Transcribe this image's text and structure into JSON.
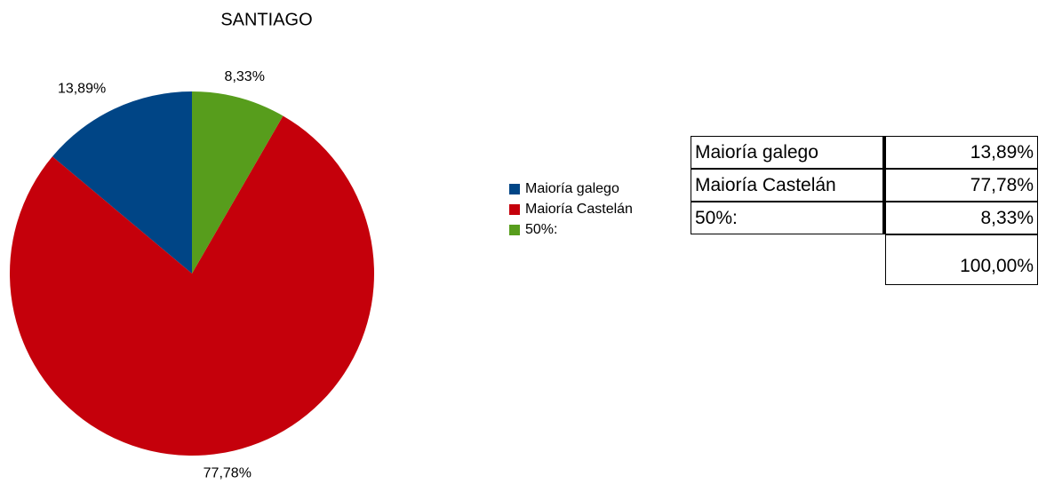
{
  "chart_data": {
    "type": "pie",
    "title": "SANTIAGO",
    "categories": [
      "Maioría galego",
      "Maioría Castelán",
      "50%:"
    ],
    "values": [
      13.89,
      77.78,
      8.33
    ],
    "value_labels": [
      "13,89%",
      "77,78%",
      "8,33%"
    ],
    "colors": [
      "#004586",
      "#c5000b",
      "#579d1c"
    ],
    "legend": "right"
  },
  "table": {
    "rows": [
      [
        "Maioría galego",
        "13,89%"
      ],
      [
        "Maioría Castelán",
        "77,78%"
      ],
      [
        "50%:",
        "8,33%"
      ]
    ],
    "total": "100,00%"
  }
}
